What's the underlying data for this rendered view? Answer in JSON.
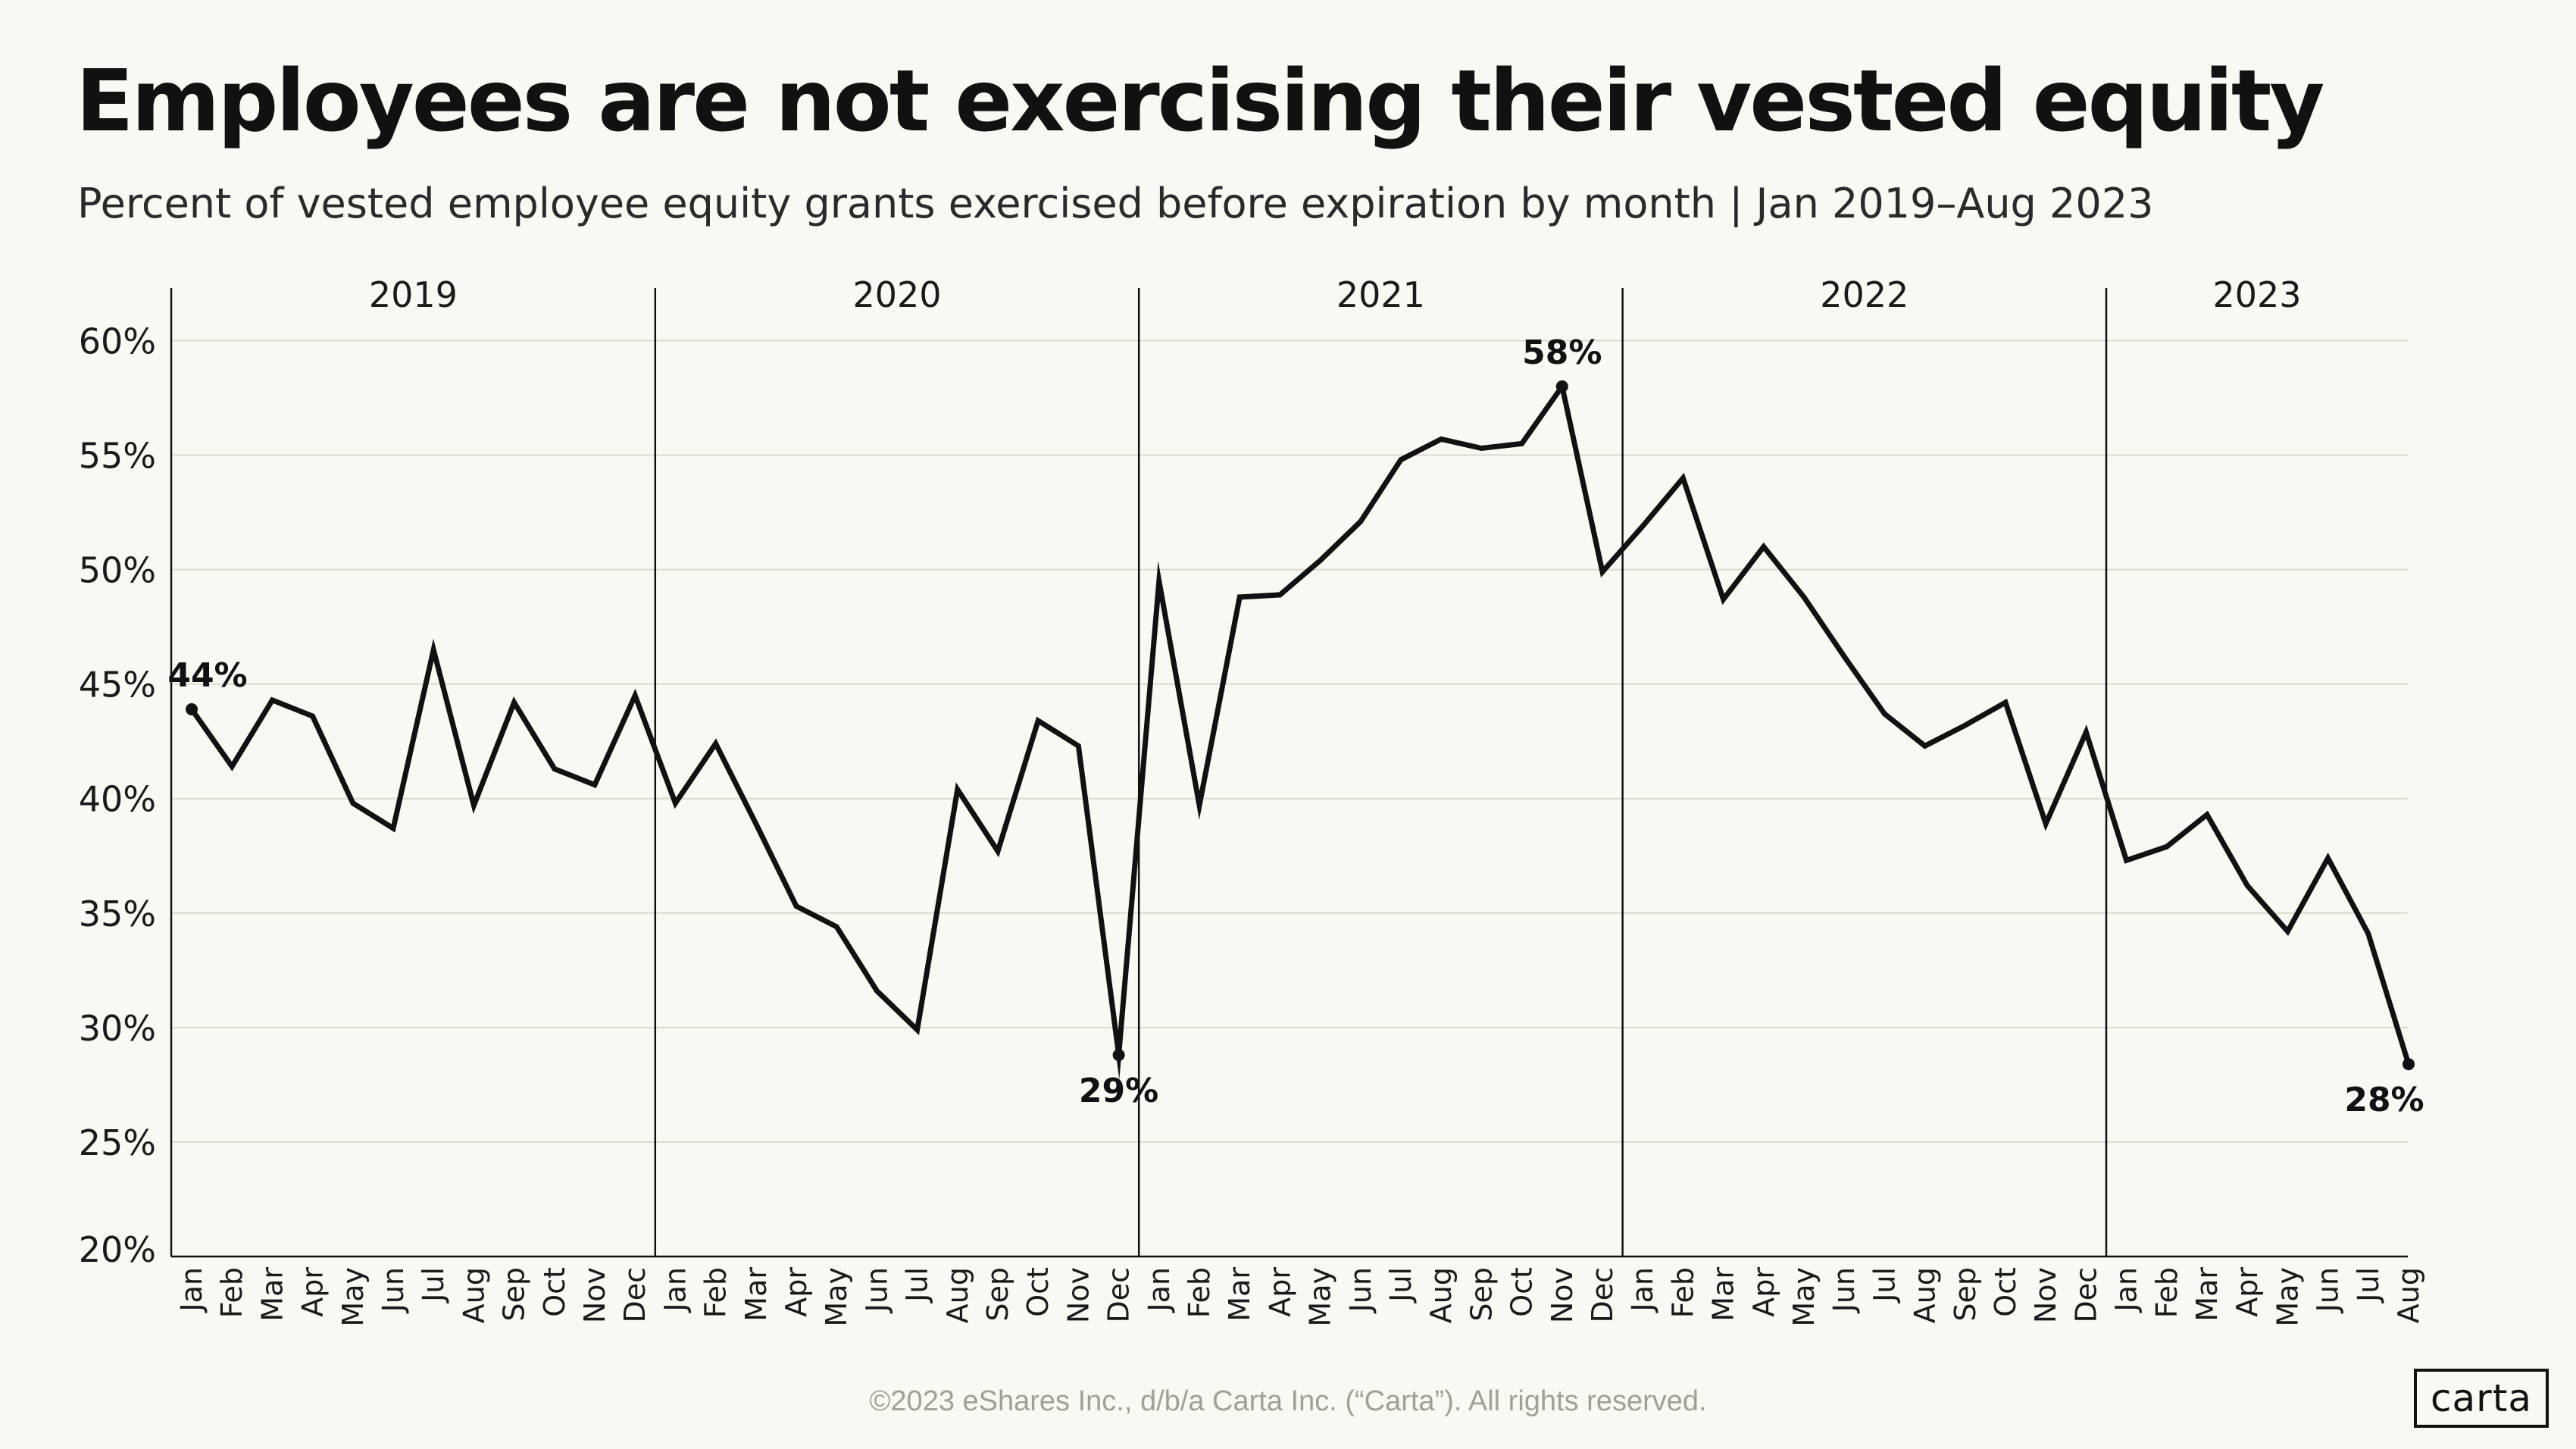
{
  "title": "Employees are not exercising their vested equity",
  "subtitle": "Percent of vested employee equity grants exercised before expiration by month | Jan 2019–Aug 2023",
  "footer": "©2023 eShares Inc., d/b/a Carta Inc. (“Carta”). All rights reserved.",
  "logo": "carta",
  "chart_data": {
    "type": "line",
    "title": "Employees are not exercising their vested equity",
    "subtitle": "Percent of vested employee equity grants exercised before expiration by month | Jan 2019–Aug 2023",
    "xlabel": "",
    "ylabel": "",
    "ylim": [
      20,
      62.3
    ],
    "yticks": [
      20,
      25,
      30,
      35,
      40,
      45,
      50,
      55,
      60
    ],
    "ytick_labels": [
      "20%",
      "25%",
      "30%",
      "35%",
      "40%",
      "45%",
      "50%",
      "55%",
      "60%"
    ],
    "grid": true,
    "line_color": "#111111",
    "grid_color": "#dcd8d0",
    "years": [
      "2019",
      "2020",
      "2021",
      "2022",
      "2023"
    ],
    "months": [
      "Jan",
      "Feb",
      "Mar",
      "Apr",
      "May",
      "Jun",
      "Jul",
      "Aug",
      "Sep",
      "Oct",
      "Nov",
      "Dec"
    ],
    "x": [
      "Jan 2019",
      "Feb 2019",
      "Mar 2019",
      "Apr 2019",
      "May 2019",
      "Jun 2019",
      "Jul 2019",
      "Aug 2019",
      "Sep 2019",
      "Oct 2019",
      "Nov 2019",
      "Dec 2019",
      "Jan 2020",
      "Feb 2020",
      "Mar 2020",
      "Apr 2020",
      "May 2020",
      "Jun 2020",
      "Jul 2020",
      "Aug 2020",
      "Sep 2020",
      "Oct 2020",
      "Nov 2020",
      "Dec 2020",
      "Jan 2021",
      "Feb 2021",
      "Mar 2021",
      "Apr 2021",
      "May 2021",
      "Jun 2021",
      "Jul 2021",
      "Aug 2021",
      "Sep 2021",
      "Oct 2021",
      "Nov 2021",
      "Dec 2021",
      "Jan 2022",
      "Feb 2022",
      "Mar 2022",
      "Apr 2022",
      "May 2022",
      "Jun 2022",
      "Jul 2022",
      "Aug 2022",
      "Sep 2022",
      "Oct 2022",
      "Nov 2022",
      "Dec 2022",
      "Jan 2023",
      "Feb 2023",
      "Mar 2023",
      "Apr 2023",
      "May 2023",
      "Jun 2023",
      "Jul 2023",
      "Aug 2023"
    ],
    "values": [
      43.9,
      41.4,
      44.3,
      43.6,
      39.8,
      38.7,
      46.5,
      39.7,
      44.2,
      41.3,
      40.6,
      44.5,
      39.8,
      42.4,
      38.9,
      35.3,
      34.4,
      31.6,
      29.9,
      40.4,
      37.7,
      43.4,
      42.3,
      28.8,
      49.5,
      39.7,
      48.8,
      48.9,
      50.4,
      52.1,
      54.8,
      55.7,
      55.3,
      55.5,
      58.0,
      49.9,
      51.9,
      54.0,
      48.7,
      51.0,
      48.8,
      46.2,
      43.7,
      42.3,
      43.2,
      44.2,
      38.9,
      42.9,
      37.3,
      37.9,
      39.3,
      36.2,
      34.2,
      37.4,
      34.1,
      28.4
    ],
    "annotations": [
      {
        "index": 0,
        "label": "44%",
        "position": "above"
      },
      {
        "index": 23,
        "label": "29%",
        "position": "below"
      },
      {
        "index": 34,
        "label": "58%",
        "position": "above"
      },
      {
        "index": 55,
        "label": "28%",
        "position": "below"
      }
    ]
  }
}
